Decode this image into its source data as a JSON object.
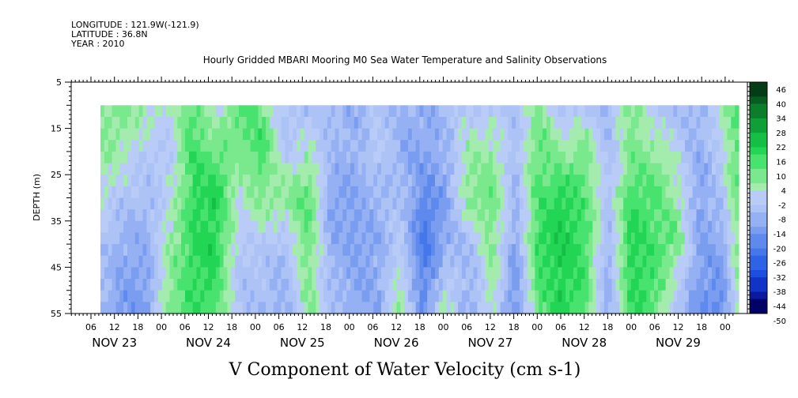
{
  "header": {
    "longitude": "LONGITUDE : 121.9W(-121.9)",
    "latitude": "LATITUDE : 36.8N",
    "year": "YEAR : 2010"
  },
  "chart_data": {
    "type": "heatmap",
    "title": "Hourly Gridded MBARI Mooring M0 Sea Water Temperature and Salinity Observations",
    "variable_label": "V Component of Water Velocity (cm s-1)",
    "ylabel": "DEPTH (m)",
    "ylim": [
      55,
      5
    ],
    "y_ticks": [
      "5",
      "15",
      "25",
      "35",
      "45",
      "55"
    ],
    "y_tick_values": [
      5,
      15,
      25,
      35,
      45,
      55
    ],
    "data_depth_range": [
      10,
      55
    ],
    "x_hour_ticks": [
      "06",
      "12",
      "18",
      "00",
      "06",
      "12",
      "18",
      "00",
      "06",
      "12",
      "18",
      "00",
      "06",
      "12",
      "18",
      "00",
      "06",
      "12",
      "18",
      "00",
      "06",
      "12",
      "18",
      "00",
      "06",
      "12",
      "18",
      "00"
    ],
    "x_day_labels": [
      "NOV 23",
      "NOV 24",
      "NOV 25",
      "NOV 26",
      "NOV 27",
      "NOV 28",
      "NOV 29"
    ],
    "time_range_hours": [
      0,
      166
    ],
    "colorbar": {
      "labels": [
        "46",
        "40",
        "34",
        "28",
        "22",
        "16",
        "10",
        "4",
        "-2",
        "-8",
        "-14",
        "-20",
        "-26",
        "-32",
        "-38",
        "-44",
        "-50"
      ],
      "levels": [
        46,
        40,
        34,
        28,
        22,
        16,
        10,
        4,
        -2,
        -8,
        -14,
        -20,
        -26,
        -32,
        -38,
        -44,
        -50
      ]
    },
    "field_columns": [
      {
        "t": 0,
        "profile": [
          6,
          4,
          1,
          -6,
          -10
        ]
      },
      {
        "t": 6,
        "profile": [
          8,
          2,
          -6,
          -12,
          -16
        ]
      },
      {
        "t": 12,
        "profile": [
          4,
          -4,
          -8,
          -12,
          -16
        ]
      },
      {
        "t": 18,
        "profile": [
          -2,
          -4,
          -2,
          4,
          8
        ]
      },
      {
        "t": 24,
        "profile": [
          12,
          14,
          16,
          16,
          14
        ]
      },
      {
        "t": 30,
        "profile": [
          -4,
          10,
          18,
          18,
          14
        ]
      },
      {
        "t": 36,
        "profile": [
          14,
          6,
          0,
          -4,
          -8
        ]
      },
      {
        "t": 42,
        "profile": [
          8,
          14,
          6,
          -4,
          -8
        ]
      },
      {
        "t": 48,
        "profile": [
          -6,
          -6,
          6,
          -8,
          -12
        ]
      },
      {
        "t": 54,
        "profile": [
          -8,
          2,
          12,
          10,
          6
        ]
      },
      {
        "t": 60,
        "profile": [
          -8,
          -8,
          -14,
          -12,
          -6
        ]
      },
      {
        "t": 66,
        "profile": [
          -10,
          -12,
          -14,
          -14,
          -12
        ]
      },
      {
        "t": 72,
        "profile": [
          -6,
          -2,
          -10,
          -12,
          -14
        ]
      },
      {
        "t": 78,
        "profile": [
          -10,
          -12,
          -6,
          -4,
          6
        ]
      },
      {
        "t": 84,
        "profile": [
          -12,
          -14,
          -20,
          -26,
          -18
        ]
      },
      {
        "t": 90,
        "profile": [
          -8,
          -10,
          -14,
          -12,
          4
        ]
      },
      {
        "t": 96,
        "profile": [
          -4,
          4,
          8,
          -8,
          -12
        ]
      },
      {
        "t": 102,
        "profile": [
          -6,
          4,
          10,
          6,
          2
        ]
      },
      {
        "t": 108,
        "profile": [
          -6,
          -8,
          -10,
          -14,
          -20
        ]
      },
      {
        "t": 114,
        "profile": [
          6,
          10,
          12,
          16,
          10
        ]
      },
      {
        "t": 120,
        "profile": [
          -6,
          4,
          18,
          20,
          18
        ]
      },
      {
        "t": 126,
        "profile": [
          -4,
          8,
          12,
          14,
          12
        ]
      },
      {
        "t": 132,
        "profile": [
          -10,
          -8,
          -6,
          -10,
          -14
        ]
      },
      {
        "t": 138,
        "profile": [
          10,
          6,
          14,
          18,
          16
        ]
      },
      {
        "t": 144,
        "profile": [
          -6,
          6,
          12,
          14,
          12
        ]
      },
      {
        "t": 150,
        "profile": [
          -8,
          -2,
          4,
          8,
          -8
        ]
      },
      {
        "t": 156,
        "profile": [
          -10,
          -12,
          -14,
          -16,
          -18
        ]
      },
      {
        "t": 162,
        "profile": [
          4,
          -2,
          -4,
          -12,
          -20
        ]
      },
      {
        "t": 166,
        "profile": [
          12,
          14,
          10,
          8,
          6
        ]
      }
    ],
    "profile_depths": [
      10,
      20,
      30,
      40,
      55
    ]
  }
}
